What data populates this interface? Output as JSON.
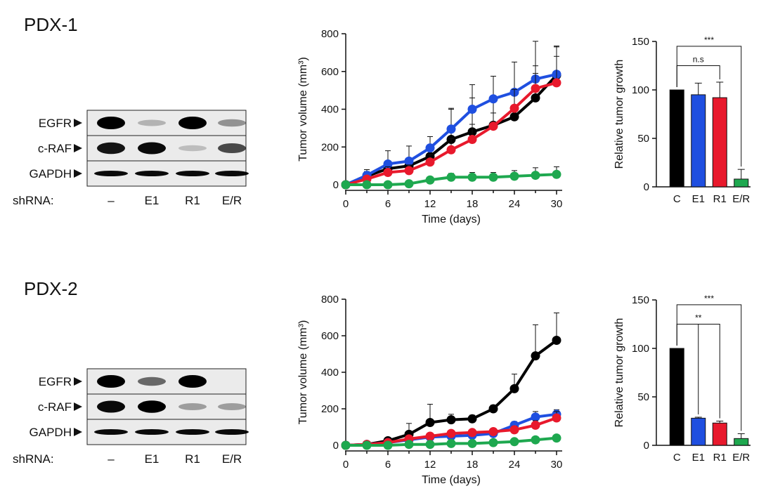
{
  "panels": [
    {
      "title": "PDX-1",
      "western_blot": {
        "rows": [
          "EGFR",
          "c-RAF",
          "GAPDH"
        ],
        "lane_caption": "shRNA:",
        "lanes": [
          "–",
          "E1",
          "R1",
          "E/R"
        ],
        "band_intensity": {
          "EGFR": [
            1.0,
            0.1,
            1.0,
            0.25
          ],
          "c-RAF": [
            0.85,
            0.9,
            0.05,
            0.6
          ],
          "GAPDH": [
            0.9,
            0.9,
            0.9,
            0.9
          ]
        }
      }
    },
    {
      "title": "PDX-2",
      "western_blot": {
        "rows": [
          "EGFR",
          "c-RAF",
          "GAPDH"
        ],
        "lane_caption": "shRNA:",
        "lanes": [
          "–",
          "E1",
          "R1",
          "E/R"
        ],
        "band_intensity": {
          "EGFR": [
            1.0,
            0.45,
            1.0,
            0.0
          ],
          "c-RAF": [
            0.9,
            0.95,
            0.2,
            0.2
          ],
          "GAPDH": [
            0.9,
            0.9,
            0.9,
            0.9
          ]
        }
      }
    }
  ],
  "colors": {
    "C": "#000000",
    "E1": "#1f4fe0",
    "R1": "#e8192c",
    "E/R": "#1ea84f"
  },
  "chart_data": [
    {
      "type": "line",
      "panel": "PDX-1",
      "xlabel": "Time (days)",
      "ylabel": "Tumor volume (mm³)",
      "xlim": [
        0,
        30
      ],
      "ylim": [
        0,
        800
      ],
      "xticks": [
        0,
        6,
        12,
        18,
        24,
        30
      ],
      "yticks": [
        0,
        200,
        400,
        600,
        800
      ],
      "x": [
        0,
        3,
        6,
        9,
        12,
        15,
        18,
        21,
        24,
        27,
        30
      ],
      "series": [
        {
          "key": "C",
          "color": "#000000",
          "values": [
            0,
            45,
            85,
            100,
            150,
            240,
            280,
            315,
            360,
            460,
            580
          ],
          "errors": [
            0,
            25,
            30,
            40,
            60,
            160,
            180,
            140,
            140,
            130,
            150
          ]
        },
        {
          "key": "E1",
          "color": "#1f4fe0",
          "values": [
            0,
            50,
            110,
            125,
            195,
            295,
            400,
            455,
            490,
            560,
            585
          ],
          "errors": [
            0,
            30,
            70,
            80,
            60,
            110,
            130,
            120,
            160,
            200,
            150
          ]
        },
        {
          "key": "R1",
          "color": "#e8192c",
          "values": [
            0,
            30,
            65,
            75,
            120,
            185,
            240,
            310,
            405,
            510,
            540
          ],
          "errors": [
            0,
            15,
            30,
            30,
            40,
            60,
            80,
            70,
            100,
            120,
            140
          ]
        },
        {
          "key": "E/R",
          "color": "#1ea84f",
          "values": [
            0,
            0,
            0,
            5,
            25,
            40,
            40,
            40,
            45,
            50,
            55
          ],
          "errors": [
            0,
            5,
            5,
            10,
            15,
            20,
            25,
            25,
            30,
            40,
            40
          ]
        }
      ]
    },
    {
      "type": "bar",
      "panel": "PDX-1",
      "ylabel": "Relative tumor growth",
      "ylim": [
        0,
        150
      ],
      "yticks": [
        0,
        50,
        100,
        150
      ],
      "categories": [
        "C",
        "E1",
        "R1",
        "E/R"
      ],
      "values": [
        100,
        95,
        92,
        8
      ],
      "errors": [
        0,
        12,
        16,
        10
      ],
      "colors": [
        "#000000",
        "#1f4fe0",
        "#e8192c",
        "#1ea84f"
      ],
      "significance": [
        {
          "from": "C",
          "to": "R1",
          "label": "n.s",
          "level": 125
        },
        {
          "from": "C",
          "to": "E/R",
          "label": "***",
          "level": 145
        }
      ]
    },
    {
      "type": "line",
      "panel": "PDX-2",
      "xlabel": "Time (days)",
      "ylabel": "Tumor volume (mm³)",
      "xlim": [
        0,
        30
      ],
      "ylim": [
        0,
        800
      ],
      "xticks": [
        0,
        6,
        12,
        18,
        24,
        30
      ],
      "yticks": [
        0,
        200,
        400,
        600,
        800
      ],
      "x": [
        0,
        3,
        6,
        9,
        12,
        15,
        18,
        21,
        24,
        27,
        30
      ],
      "series": [
        {
          "key": "C",
          "color": "#000000",
          "values": [
            0,
            5,
            25,
            60,
            125,
            140,
            145,
            200,
            310,
            490,
            575
          ],
          "errors": [
            0,
            5,
            15,
            60,
            100,
            30,
            20,
            20,
            80,
            170,
            150
          ]
        },
        {
          "key": "E1",
          "color": "#1f4fe0",
          "values": [
            0,
            5,
            15,
            30,
            45,
            50,
            55,
            65,
            110,
            155,
            170
          ],
          "errors": [
            0,
            5,
            10,
            15,
            15,
            15,
            15,
            15,
            20,
            30,
            25
          ]
        },
        {
          "key": "R1",
          "color": "#e8192c",
          "values": [
            0,
            5,
            15,
            35,
            50,
            65,
            70,
            75,
            85,
            110,
            150
          ],
          "errors": [
            0,
            5,
            10,
            15,
            15,
            15,
            15,
            15,
            20,
            25,
            35
          ]
        },
        {
          "key": "E/R",
          "color": "#1ea84f",
          "values": [
            0,
            0,
            0,
            5,
            5,
            10,
            10,
            15,
            20,
            30,
            40
          ],
          "errors": [
            0,
            3,
            3,
            5,
            5,
            5,
            5,
            5,
            8,
            10,
            15
          ]
        }
      ]
    },
    {
      "type": "bar",
      "panel": "PDX-2",
      "ylabel": "Relative tumor growth",
      "ylim": [
        0,
        150
      ],
      "yticks": [
        0,
        50,
        100,
        150
      ],
      "categories": [
        "C",
        "E1",
        "R1",
        "E/R"
      ],
      "values": [
        100,
        28,
        23,
        7
      ],
      "errors": [
        0,
        1,
        2,
        5
      ],
      "colors": [
        "#000000",
        "#1f4fe0",
        "#e8192c",
        "#1ea84f"
      ],
      "significance": [
        {
          "from": "C",
          "to": "R1",
          "label": "**",
          "level": 125,
          "drops_to_each": true
        },
        {
          "from": "C",
          "to": "E/R",
          "label": "***",
          "level": 145
        }
      ]
    }
  ]
}
